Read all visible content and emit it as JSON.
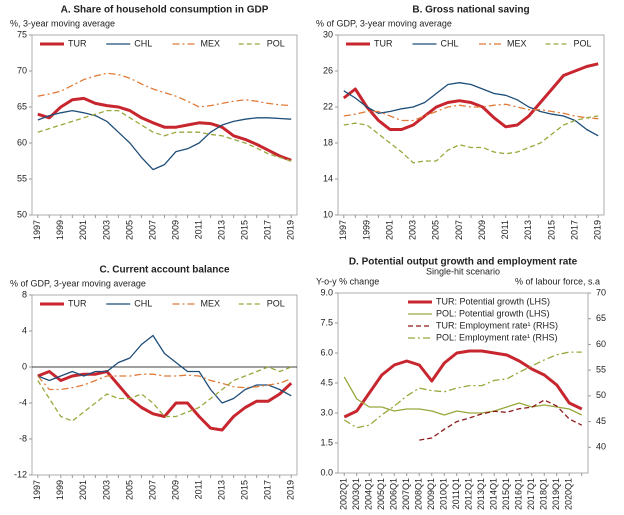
{
  "chart_data": [
    {
      "type": "line",
      "title": "A. Share of household consumption in GDP",
      "ylabel": "%, 3-year moving average",
      "categories": [
        "1997",
        null,
        "1999",
        null,
        "2001",
        null,
        "2003",
        null,
        "2005",
        null,
        "2007",
        null,
        "2009",
        null,
        "2011",
        null,
        "2013",
        null,
        "2015",
        null,
        "2017",
        null,
        "2019"
      ],
      "ylim": [
        50,
        75
      ],
      "yticks": [
        50,
        55,
        60,
        65,
        70,
        75
      ],
      "legend": "top",
      "grid": false,
      "series": [
        {
          "name": "TUR",
          "color": "#c8262f",
          "style": "solid",
          "linewidth": 3,
          "values": [
            64,
            63.5,
            65,
            66,
            66.2,
            65.5,
            65.2,
            65,
            64.5,
            63.5,
            62.8,
            62.2,
            62.2,
            62.5,
            62.8,
            62.7,
            62.2,
            61,
            60.5,
            59.8,
            59,
            58.2,
            57.6
          ]
        },
        {
          "name": "CHL",
          "color": "#1f4e79",
          "style": "solid",
          "linewidth": 1.3,
          "values": [
            63.2,
            63.8,
            64.2,
            64.5,
            64.2,
            63.8,
            63,
            61.5,
            60,
            58,
            56.3,
            57,
            58.8,
            59.2,
            60,
            61.5,
            62.5,
            63,
            63.3,
            63.5,
            63.5,
            63.4,
            63.3
          ]
        },
        {
          "name": "MEX",
          "color": "#e07b39",
          "style": "dashdot",
          "linewidth": 1.3,
          "values": [
            66.5,
            66.8,
            67.2,
            68,
            68.8,
            69.3,
            69.7,
            69.5,
            69,
            68.2,
            67.5,
            67,
            66.5,
            65.8,
            65,
            65.2,
            65.5,
            65.8,
            66,
            65.8,
            65.5,
            65.3,
            65.2
          ]
        },
        {
          "name": "POL",
          "color": "#9aa73c",
          "style": "dashed",
          "linewidth": 1.3,
          "values": [
            61.5,
            62,
            62.5,
            63,
            63.5,
            64,
            64.5,
            64.5,
            63.5,
            62.5,
            61.5,
            61,
            61.5,
            61.5,
            61.5,
            61.2,
            61,
            60.5,
            60,
            59.3,
            58.5,
            58,
            57.5
          ]
        }
      ]
    },
    {
      "type": "line",
      "title": "B. Gross national saving",
      "ylabel": "% of GDP, 3-year moving average",
      "categories": [
        "1997",
        null,
        "1999",
        null,
        "2001",
        null,
        "2003",
        null,
        "2005",
        null,
        "2007",
        null,
        "2009",
        null,
        "2011",
        null,
        "2013",
        null,
        "2015",
        null,
        "2017",
        null,
        "2019"
      ],
      "ylim": [
        10,
        30
      ],
      "yticks": [
        10,
        14,
        18,
        22,
        26,
        30
      ],
      "legend": "top",
      "grid": false,
      "series": [
        {
          "name": "TUR",
          "color": "#c8262f",
          "style": "solid",
          "linewidth": 3,
          "values": [
            23,
            24,
            22,
            20.5,
            19.5,
            19.5,
            20,
            21,
            22,
            22.5,
            22.7,
            22.5,
            22,
            20.8,
            19.8,
            20,
            21,
            22.5,
            24,
            25.5,
            26,
            26.5,
            26.8
          ]
        },
        {
          "name": "CHL",
          "color": "#1f4e79",
          "style": "solid",
          "linewidth": 1.3,
          "values": [
            23.8,
            23,
            22,
            21.3,
            21.5,
            21.8,
            22,
            22.5,
            23.5,
            24.5,
            24.7,
            24.5,
            24,
            23.5,
            23.3,
            22.8,
            22,
            21.5,
            21.2,
            21,
            20.5,
            19.5,
            18.8
          ]
        },
        {
          "name": "MEX",
          "color": "#e07b39",
          "style": "dashdot",
          "linewidth": 1.3,
          "values": [
            21,
            21.2,
            21.5,
            21.5,
            21,
            20.5,
            20.5,
            21,
            21.5,
            22,
            22.2,
            22,
            22,
            22.2,
            22.3,
            22,
            21.7,
            21.7,
            21.5,
            21.3,
            21,
            20.8,
            20.7
          ]
        },
        {
          "name": "POL",
          "color": "#9aa73c",
          "style": "dashed",
          "linewidth": 1.3,
          "values": [
            20,
            20.2,
            20,
            19,
            18,
            17,
            15.8,
            16,
            16,
            17.2,
            17.8,
            17.5,
            17.5,
            17,
            16.8,
            17,
            17.5,
            18,
            19,
            20,
            20.5,
            20.8,
            21
          ]
        }
      ]
    },
    {
      "type": "line",
      "title": "C. Current account balance",
      "ylabel": "% of GDP, 3-year moving average",
      "categories": [
        "1997",
        null,
        "1999",
        null,
        "2001",
        null,
        "2003",
        null,
        "2005",
        null,
        "2007",
        null,
        "2009",
        null,
        "2011",
        null,
        "2013",
        null,
        "2015",
        null,
        "2017",
        null,
        "2019"
      ],
      "ylim": [
        -12,
        8
      ],
      "yticks": [
        -12,
        -8,
        -4,
        0,
        4,
        8
      ],
      "legend": "top",
      "grid": false,
      "series": [
        {
          "name": "TUR",
          "color": "#c8262f",
          "style": "solid",
          "linewidth": 3,
          "values": [
            -1,
            -0.5,
            -1.5,
            -1,
            -0.8,
            -0.8,
            -0.5,
            -2,
            -3.5,
            -4.5,
            -5.2,
            -5.5,
            -4,
            -4,
            -5.5,
            -6.8,
            -7,
            -5.5,
            -4.5,
            -3.8,
            -3.8,
            -3,
            -1.8
          ]
        },
        {
          "name": "CHL",
          "color": "#1f4e79",
          "style": "solid",
          "linewidth": 1.3,
          "values": [
            -1,
            -1.5,
            -1,
            -0.5,
            -1,
            -0.5,
            -0.5,
            0.5,
            1,
            2.5,
            3.5,
            1.5,
            0.5,
            -0.5,
            -0.5,
            -2.5,
            -4,
            -3.5,
            -2.5,
            -2,
            -2,
            -2.5,
            -3.2
          ]
        },
        {
          "name": "MEX",
          "color": "#e07b39",
          "style": "dashdot",
          "linewidth": 1.3,
          "values": [
            -1,
            -2.5,
            -2.5,
            -2.3,
            -2,
            -1.5,
            -1,
            -1,
            -1,
            -0.8,
            -0.8,
            -1,
            -1,
            -0.9,
            -1,
            -1.5,
            -1.8,
            -2.2,
            -2.3,
            -2.2,
            -2,
            -1.8,
            -1.3
          ]
        },
        {
          "name": "POL",
          "color": "#9aa73c",
          "style": "dashed",
          "linewidth": 1.3,
          "values": [
            -1.5,
            -3.5,
            -5.5,
            -6,
            -5,
            -4,
            -3,
            -3.5,
            -3.5,
            -3,
            -4,
            -5.5,
            -5.5,
            -5,
            -4.5,
            -3.5,
            -2.5,
            -1.5,
            -1,
            -0.5,
            0,
            -0.5,
            0
          ]
        }
      ]
    },
    {
      "type": "line",
      "title": "D. Potential output growth and employment rate",
      "subtitle": "Single-hit scenario",
      "ylabel": "Y-o-y % change",
      "y2label": "% of labour force, s.a",
      "categories": [
        "2002Q1",
        "2003Q1",
        "2004Q1",
        "2005Q1",
        "2006Q1",
        "2007Q1",
        "2008Q1",
        "2009Q1",
        "2010Q1",
        "2011Q1",
        "2012Q1",
        "2013Q1",
        "2014Q1",
        "2015Q1",
        "2016Q1",
        "2017Q1",
        "2018Q1",
        "2019Q1",
        "2020Q1",
        null
      ],
      "ylim": [
        0,
        9
      ],
      "yticks": [
        {
          "value": 0,
          "label": "0.0"
        },
        1.5,
        {
          "value": 3,
          "label": "3.0"
        },
        4.5,
        {
          "value": 6,
          "label": "6.0"
        },
        7.5,
        {
          "value": 9,
          "label": "9.0"
        }
      ],
      "y2lim": [
        35,
        70
      ],
      "y2ticks": [
        40,
        45,
        50,
        55,
        60,
        65,
        70
      ],
      "legend": "upper right",
      "grid": false,
      "series": [
        {
          "name": "TUR: Potential growth (LHS)",
          "color": "#c8262f",
          "style": "solid",
          "linewidth": 3,
          "values": [
            2.8,
            3.1,
            4,
            4.9,
            5.4,
            5.6,
            5.4,
            4.6,
            5.5,
            6,
            6.1,
            6.1,
            6,
            5.9,
            5.6,
            5.2,
            4.9,
            4.4,
            3.5,
            3.2
          ]
        },
        {
          "name": "POL: Potential growth (LHS)",
          "color": "#9aa73c",
          "style": "solid",
          "linewidth": 1.3,
          "values": [
            4.8,
            3.7,
            3.3,
            3.3,
            3.1,
            3.2,
            3.2,
            3.1,
            2.9,
            3.1,
            3,
            3,
            3.1,
            3.3,
            3.5,
            3.3,
            3.4,
            3.3,
            3.2,
            2.9
          ]
        },
        {
          "name": "TUR: Employment rate¹ (RHS)",
          "color": "#8b1a1a",
          "style": "dashed",
          "linewidth": 1.3,
          "axis": "y2",
          "values": [
            null,
            null,
            null,
            null,
            null,
            null,
            41.4,
            41.8,
            43.5,
            45,
            45.7,
            46.5,
            47,
            46.8,
            47.5,
            47.8,
            49.2,
            48,
            45.5,
            44.3
          ]
        },
        {
          "name": "POL: Employment rate¹ (RHS)",
          "color": "#9aa73c",
          "style": "dashdot",
          "linewidth": 1.3,
          "axis": "y2",
          "values": [
            45.3,
            43.8,
            44.3,
            46.3,
            48,
            50,
            51.5,
            51,
            50.8,
            51.5,
            52,
            52,
            53,
            53.3,
            54.6,
            55.8,
            57,
            58,
            58.5,
            58.5
          ]
        }
      ]
    }
  ]
}
